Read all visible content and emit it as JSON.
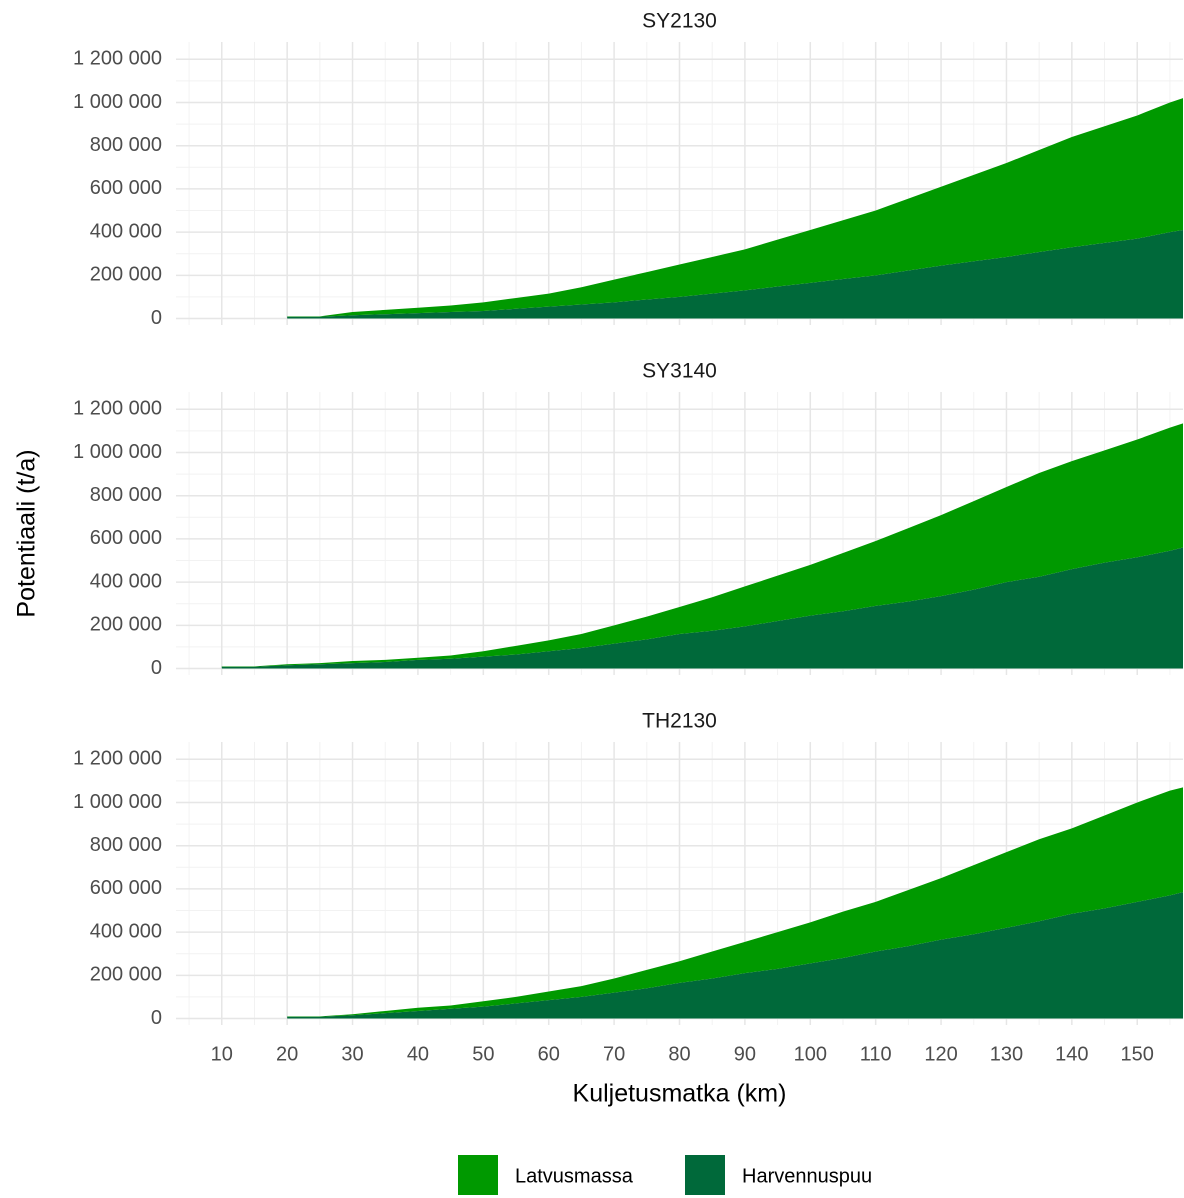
{
  "chart_data": [
    {
      "type": "stacked-area",
      "title": "SY2130",
      "x": [
        20,
        25,
        30,
        35,
        40,
        45,
        50,
        55,
        60,
        65,
        70,
        75,
        80,
        85,
        90,
        95,
        100,
        105,
        110,
        115,
        120,
        125,
        130,
        135,
        140,
        145,
        150,
        155,
        157
      ],
      "series": [
        {
          "name": "Latvusmassa",
          "color": "#009900",
          "values": [
            2000,
            2000,
            15000,
            20000,
            25000,
            30000,
            40000,
            50000,
            60000,
            80000,
            105000,
            127000,
            150000,
            170000,
            190000,
            217000,
            245000,
            272000,
            300000,
            333000,
            365000,
            400000,
            435000,
            472000,
            510000,
            540000,
            570000,
            600000,
            610000
          ]
        },
        {
          "name": "Harvennuspuu",
          "color": "#00693a",
          "values": [
            8000,
            8000,
            15000,
            20000,
            25000,
            30000,
            35000,
            45000,
            55000,
            65000,
            75000,
            88000,
            100000,
            115000,
            130000,
            148000,
            165000,
            183000,
            200000,
            222000,
            245000,
            265000,
            285000,
            308000,
            330000,
            350000,
            370000,
            400000,
            410000
          ]
        }
      ],
      "xlim": [
        3,
        157
      ],
      "xticks": [
        10,
        20,
        30,
        40,
        50,
        60,
        70,
        80,
        90,
        100,
        110,
        120,
        130,
        140,
        150
      ],
      "ylim": [
        -30000,
        1280000
      ],
      "yticks": [
        0,
        {
          "value": 200000,
          "label": "200 000"
        },
        {
          "value": 400000,
          "label": "400 000"
        },
        {
          "value": 600000,
          "label": "600 000"
        },
        {
          "value": 800000,
          "label": "800 000"
        },
        {
          "value": 1000000,
          "label": "1 000 000"
        },
        {
          "value": 1200000,
          "label": "1 200 000"
        }
      ],
      "grid": true
    },
    {
      "type": "stacked-area",
      "title": "SY3140",
      "y_label": "Potentiaali (t/a)",
      "x": [
        10,
        15,
        20,
        25,
        30,
        35,
        40,
        45,
        50,
        55,
        60,
        65,
        70,
        75,
        80,
        85,
        90,
        95,
        100,
        105,
        110,
        115,
        120,
        125,
        130,
        135,
        140,
        145,
        150,
        155,
        157
      ],
      "series": [
        {
          "name": "Latvusmassa",
          "color": "#009900",
          "values": [
            2000,
            2000,
            5000,
            5000,
            10000,
            10000,
            10000,
            15000,
            25000,
            40000,
            50000,
            65000,
            85000,
            105000,
            125000,
            155000,
            185000,
            210000,
            235000,
            270000,
            300000,
            340000,
            375000,
            410000,
            440000,
            480000,
            500000,
            520000,
            545000,
            570000,
            575000
          ]
        },
        {
          "name": "Harvennuspuu",
          "color": "#00693a",
          "values": [
            8000,
            8000,
            15000,
            20000,
            25000,
            30000,
            40000,
            45000,
            55000,
            65000,
            80000,
            95000,
            115000,
            135000,
            160000,
            175000,
            195000,
            220000,
            245000,
            265000,
            290000,
            310000,
            335000,
            365000,
            400000,
            425000,
            460000,
            490000,
            515000,
            545000,
            560000
          ]
        }
      ],
      "xlim": [
        3,
        157
      ],
      "xticks": [
        10,
        20,
        30,
        40,
        50,
        60,
        70,
        80,
        90,
        100,
        110,
        120,
        130,
        140,
        150
      ],
      "ylim": [
        -30000,
        1280000
      ],
      "yticks": [
        0,
        {
          "value": 200000,
          "label": "200 000"
        },
        {
          "value": 400000,
          "label": "400 000"
        },
        {
          "value": 600000,
          "label": "600 000"
        },
        {
          "value": 800000,
          "label": "800 000"
        },
        {
          "value": 1000000,
          "label": "1 000 000"
        },
        {
          "value": 1200000,
          "label": "1 200 000"
        }
      ],
      "grid": true
    },
    {
      "type": "stacked-area",
      "title": "TH2130",
      "x_label": "Kuljetusmatka (km)",
      "x": [
        20,
        25,
        30,
        35,
        40,
        45,
        50,
        55,
        60,
        65,
        70,
        75,
        80,
        85,
        90,
        95,
        100,
        105,
        110,
        115,
        120,
        125,
        130,
        135,
        140,
        145,
        150,
        155,
        157
      ],
      "series": [
        {
          "name": "Latvusmassa",
          "color": "#009900",
          "values": [
            2000,
            2000,
            5000,
            10000,
            15000,
            15000,
            25000,
            30000,
            40000,
            50000,
            65000,
            85000,
            100000,
            125000,
            145000,
            170000,
            190000,
            215000,
            230000,
            260000,
            285000,
            320000,
            350000,
            380000,
            395000,
            430000,
            460000,
            485000,
            485000
          ]
        },
        {
          "name": "Harvennuspuu",
          "color": "#00693a",
          "values": [
            8000,
            8000,
            15000,
            25000,
            35000,
            45000,
            55000,
            70000,
            85000,
            100000,
            120000,
            140000,
            165000,
            185000,
            210000,
            230000,
            255000,
            280000,
            310000,
            335000,
            365000,
            390000,
            420000,
            450000,
            485000,
            510000,
            540000,
            570000,
            585000
          ]
        }
      ],
      "xlim": [
        3,
        157
      ],
      "xticks": [
        10,
        20,
        30,
        40,
        50,
        60,
        70,
        80,
        90,
        100,
        110,
        120,
        130,
        140,
        150
      ],
      "ylim": [
        -30000,
        1280000
      ],
      "yticks": [
        0,
        {
          "value": 200000,
          "label": "200 000"
        },
        {
          "value": 400000,
          "label": "400 000"
        },
        {
          "value": 600000,
          "label": "600 000"
        },
        {
          "value": 800000,
          "label": "800 000"
        },
        {
          "value": 1000000,
          "label": "1 000 000"
        },
        {
          "value": 1200000,
          "label": "1 200 000"
        }
      ],
      "grid": true
    }
  ]
}
